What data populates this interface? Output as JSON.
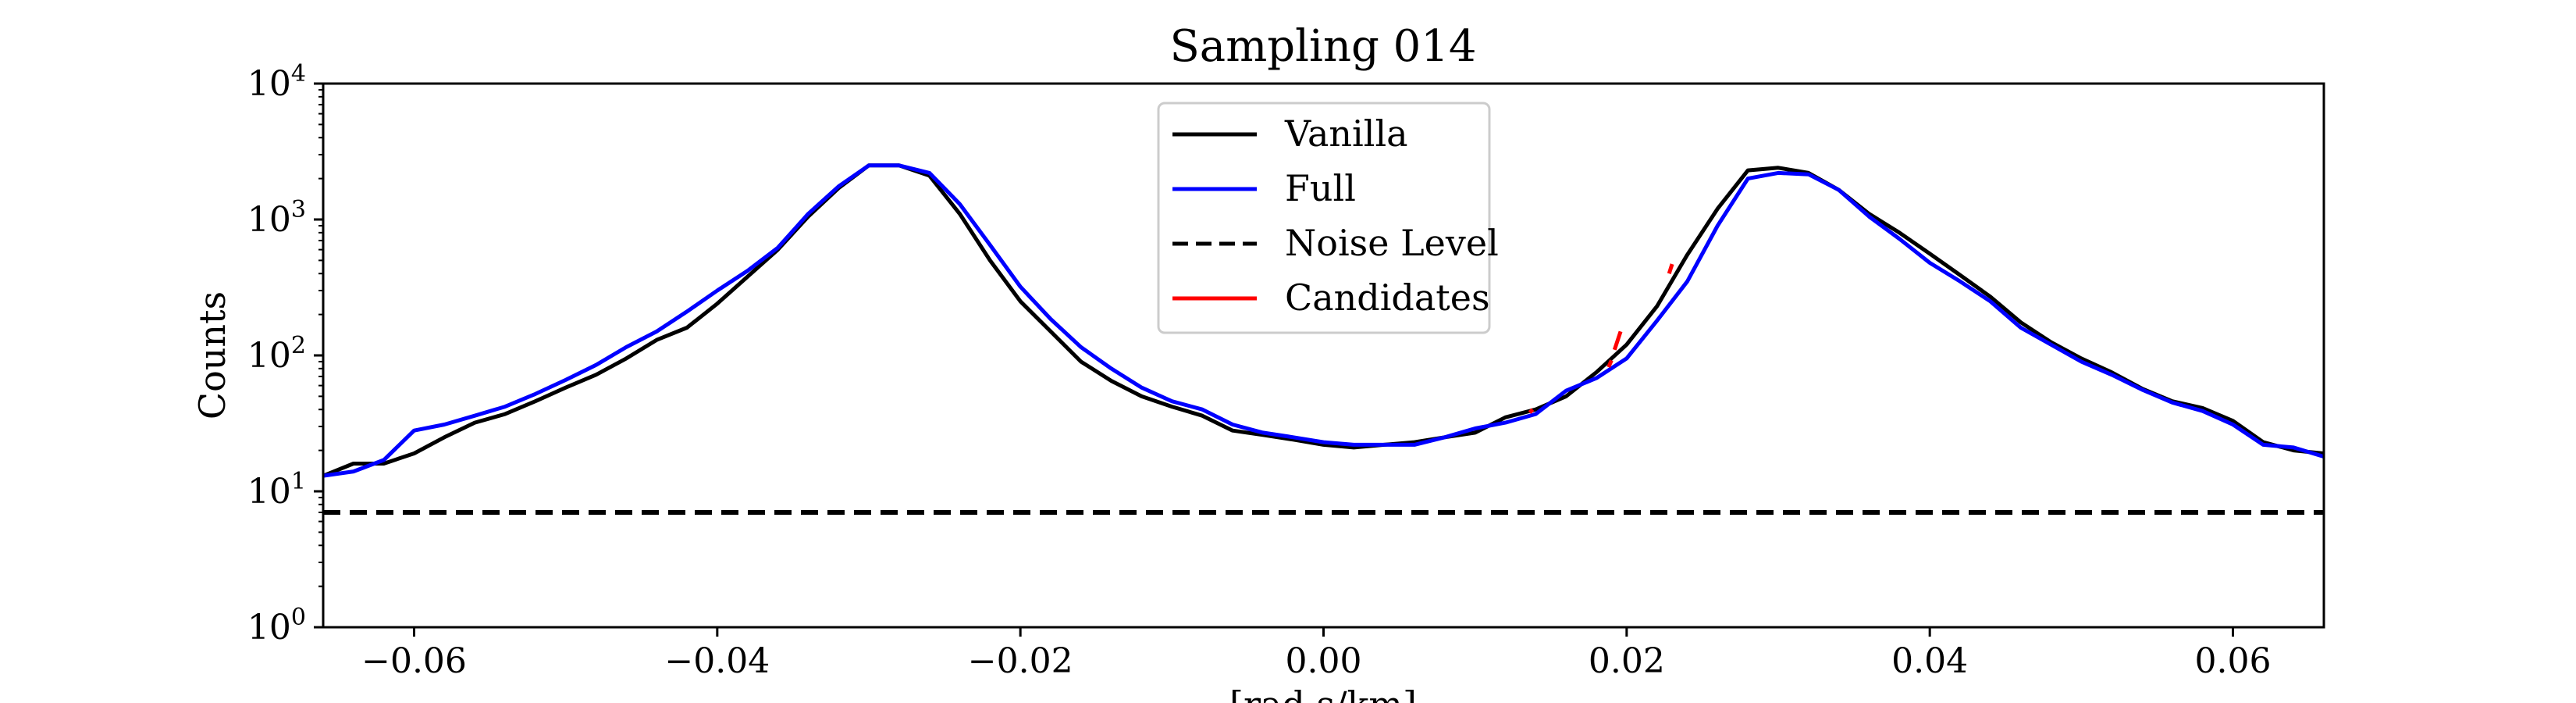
{
  "chart_data": {
    "type": "line",
    "title": "Sampling 014",
    "ylabel": "Counts",
    "xlabel": "[rad s/km]",
    "xlim": [
      -0.066,
      0.066
    ],
    "ylim": [
      1,
      10000
    ],
    "yscale": "log",
    "legend_position": "top-center",
    "x_ticks": [
      -0.06,
      -0.04,
      -0.02,
      0.0,
      0.02,
      0.04,
      0.06
    ],
    "x_tick_labels": [
      "−0.06",
      "−0.04",
      "−0.02",
      "0.00",
      "0.02",
      "0.04",
      "0.06"
    ],
    "y_ticks": [
      1,
      10,
      100,
      1000,
      10000
    ],
    "y_tick_labels": [
      {
        "base": "10",
        "exp": "0"
      },
      {
        "base": "10",
        "exp": "1"
      },
      {
        "base": "10",
        "exp": "2"
      },
      {
        "base": "10",
        "exp": "3"
      },
      {
        "base": "10",
        "exp": "4"
      }
    ],
    "noise_level": 7,
    "series": [
      {
        "name": "Vanilla",
        "color": "#000000",
        "style": "solid",
        "x": [
          -0.066,
          -0.064,
          -0.062,
          -0.06,
          -0.058,
          -0.056,
          -0.054,
          -0.052,
          -0.05,
          -0.048,
          -0.046,
          -0.044,
          -0.042,
          -0.04,
          -0.038,
          -0.036,
          -0.034,
          -0.032,
          -0.03,
          -0.028,
          -0.026,
          -0.024,
          -0.022,
          -0.02,
          -0.018,
          -0.016,
          -0.014,
          -0.012,
          -0.01,
          -0.008,
          -0.006,
          -0.004,
          -0.002,
          0.0,
          0.002,
          0.004,
          0.006,
          0.008,
          0.01,
          0.012,
          0.014,
          0.016,
          0.018,
          0.02,
          0.022,
          0.024,
          0.026,
          0.028,
          0.03,
          0.032,
          0.034,
          0.036,
          0.038,
          0.04,
          0.042,
          0.044,
          0.046,
          0.048,
          0.05,
          0.052,
          0.054,
          0.056,
          0.058,
          0.06,
          0.062,
          0.064,
          0.066
        ],
        "values": [
          13,
          16,
          16,
          19,
          25,
          32,
          37,
          46,
          58,
          72,
          95,
          130,
          160,
          240,
          380,
          600,
          1050,
          1700,
          2500,
          2500,
          2100,
          1100,
          500,
          250,
          150,
          90,
          65,
          50,
          42,
          36,
          28,
          26,
          24,
          22,
          21,
          22,
          23,
          25,
          27,
          35,
          40,
          50,
          75,
          120,
          230,
          550,
          1200,
          2300,
          2400,
          2200,
          1650,
          1100,
          800,
          560,
          390,
          270,
          175,
          125,
          95,
          75,
          57,
          46,
          41,
          33,
          23,
          20,
          19
        ]
      },
      {
        "name": "Full",
        "color": "#0000ff",
        "style": "solid",
        "x": [
          -0.066,
          -0.064,
          -0.062,
          -0.06,
          -0.058,
          -0.056,
          -0.054,
          -0.052,
          -0.05,
          -0.048,
          -0.046,
          -0.044,
          -0.042,
          -0.04,
          -0.038,
          -0.036,
          -0.034,
          -0.032,
          -0.03,
          -0.028,
          -0.026,
          -0.024,
          -0.022,
          -0.02,
          -0.018,
          -0.016,
          -0.014,
          -0.012,
          -0.01,
          -0.008,
          -0.006,
          -0.004,
          -0.002,
          0.0,
          0.002,
          0.004,
          0.006,
          0.008,
          0.01,
          0.012,
          0.014,
          0.016,
          0.018,
          0.02,
          0.022,
          0.024,
          0.026,
          0.028,
          0.03,
          0.032,
          0.034,
          0.036,
          0.038,
          0.04,
          0.042,
          0.044,
          0.046,
          0.048,
          0.05,
          0.052,
          0.054,
          0.056,
          0.058,
          0.06,
          0.062,
          0.064,
          0.066
        ],
        "values": [
          13,
          14,
          17,
          28,
          31,
          36,
          42,
          52,
          66,
          85,
          115,
          150,
          210,
          300,
          420,
          620,
          1100,
          1750,
          2500,
          2500,
          2200,
          1300,
          650,
          320,
          185,
          115,
          80,
          58,
          46,
          40,
          31,
          27,
          25,
          23,
          22,
          22,
          22,
          25,
          29,
          32,
          37,
          55,
          68,
          95,
          180,
          350,
          900,
          2000,
          2200,
          2150,
          1650,
          1050,
          720,
          480,
          350,
          250,
          160,
          120,
          90,
          72,
          56,
          45,
          39,
          31,
          22,
          21,
          18
        ]
      },
      {
        "name": "Noise Level",
        "color": "#000000",
        "style": "dashed",
        "x": [
          -0.066,
          0.066
        ],
        "values": [
          7,
          7
        ]
      },
      {
        "name": "Candidates",
        "color": "#ff0000",
        "style": "solid",
        "x": [
          0.0136,
          0.0138,
          0.0188,
          0.019,
          0.0192,
          0.0196,
          0.0228,
          0.023
        ],
        "values": [
          38,
          40,
          82,
          92,
          110,
          150,
          400,
          470
        ]
      }
    ]
  }
}
